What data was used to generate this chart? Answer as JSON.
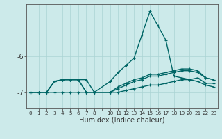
{
  "xlabel": "Humidex (Indice chaleur)",
  "ylabel": "",
  "background_color": "#cceaea",
  "line_color": "#006666",
  "xlim": [
    -0.5,
    23.5
  ],
  "ylim": [
    -7.45,
    -4.55
  ],
  "yticks": [
    -7,
    -6
  ],
  "xtick_labels": [
    "0",
    "1",
    "2",
    "3",
    "4",
    "5",
    "6",
    "7",
    "8",
    "",
    "10",
    "11",
    "12",
    "13",
    "14",
    "15",
    "16",
    "17",
    "18",
    "19",
    "20",
    "21",
    "22",
    "23"
  ],
  "series": [
    {
      "points": [
        [
          0,
          -7.0
        ],
        [
          1,
          -7.0
        ],
        [
          2,
          -7.0
        ],
        [
          3,
          -6.7
        ],
        [
          4,
          -6.65
        ],
        [
          5,
          -6.65
        ],
        [
          6,
          -6.65
        ],
        [
          7,
          -6.65
        ],
        [
          8,
          -7.0
        ],
        [
          10,
          -6.7
        ],
        [
          11,
          -6.45
        ],
        [
          12,
          -6.25
        ],
        [
          13,
          -6.05
        ],
        [
          14,
          -5.4
        ],
        [
          15,
          -4.75
        ],
        [
          16,
          -5.15
        ],
        [
          17,
          -5.55
        ],
        [
          18,
          -6.55
        ],
        [
          19,
          -6.6
        ],
        [
          20,
          -6.65
        ],
        [
          21,
          -6.6
        ],
        [
          22,
          -6.75
        ],
        [
          23,
          -6.75
        ]
      ],
      "lw": 1.0
    },
    {
      "points": [
        [
          0,
          -7.0
        ],
        [
          1,
          -7.0
        ],
        [
          2,
          -7.0
        ],
        [
          3,
          -6.7
        ],
        [
          4,
          -6.65
        ],
        [
          5,
          -6.65
        ],
        [
          6,
          -6.65
        ],
        [
          7,
          -7.0
        ],
        [
          8,
          -7.0
        ],
        [
          10,
          -7.0
        ],
        [
          11,
          -6.85
        ],
        [
          12,
          -6.75
        ],
        [
          13,
          -6.65
        ],
        [
          14,
          -6.6
        ],
        [
          15,
          -6.5
        ],
        [
          16,
          -6.5
        ],
        [
          17,
          -6.45
        ],
        [
          18,
          -6.4
        ],
        [
          19,
          -6.35
        ],
        [
          20,
          -6.35
        ],
        [
          21,
          -6.4
        ],
        [
          22,
          -6.6
        ],
        [
          23,
          -6.65
        ]
      ],
      "lw": 1.0
    },
    {
      "points": [
        [
          0,
          -7.0
        ],
        [
          1,
          -7.0
        ],
        [
          2,
          -7.0
        ],
        [
          3,
          -6.7
        ],
        [
          4,
          -6.65
        ],
        [
          5,
          -6.65
        ],
        [
          6,
          -6.65
        ],
        [
          7,
          -7.0
        ],
        [
          8,
          -7.0
        ],
        [
          10,
          -7.0
        ],
        [
          11,
          -6.9
        ],
        [
          12,
          -6.8
        ],
        [
          13,
          -6.7
        ],
        [
          14,
          -6.65
        ],
        [
          15,
          -6.55
        ],
        [
          16,
          -6.55
        ],
        [
          17,
          -6.5
        ],
        [
          18,
          -6.45
        ],
        [
          19,
          -6.4
        ],
        [
          20,
          -6.4
        ],
        [
          21,
          -6.45
        ],
        [
          22,
          -6.6
        ],
        [
          23,
          -6.65
        ]
      ],
      "lw": 1.0
    },
    {
      "points": [
        [
          0,
          -7.0
        ],
        [
          1,
          -7.0
        ],
        [
          2,
          -7.0
        ],
        [
          3,
          -7.0
        ],
        [
          4,
          -7.0
        ],
        [
          5,
          -7.0
        ],
        [
          6,
          -7.0
        ],
        [
          7,
          -7.0
        ],
        [
          8,
          -7.0
        ],
        [
          10,
          -7.0
        ],
        [
          11,
          -7.0
        ],
        [
          12,
          -6.95
        ],
        [
          13,
          -6.9
        ],
        [
          14,
          -6.85
        ],
        [
          15,
          -6.8
        ],
        [
          16,
          -6.8
        ],
        [
          17,
          -6.75
        ],
        [
          18,
          -6.7
        ],
        [
          19,
          -6.65
        ],
        [
          20,
          -6.65
        ],
        [
          21,
          -6.7
        ],
        [
          22,
          -6.8
        ],
        [
          23,
          -6.85
        ]
      ],
      "lw": 1.0
    }
  ]
}
